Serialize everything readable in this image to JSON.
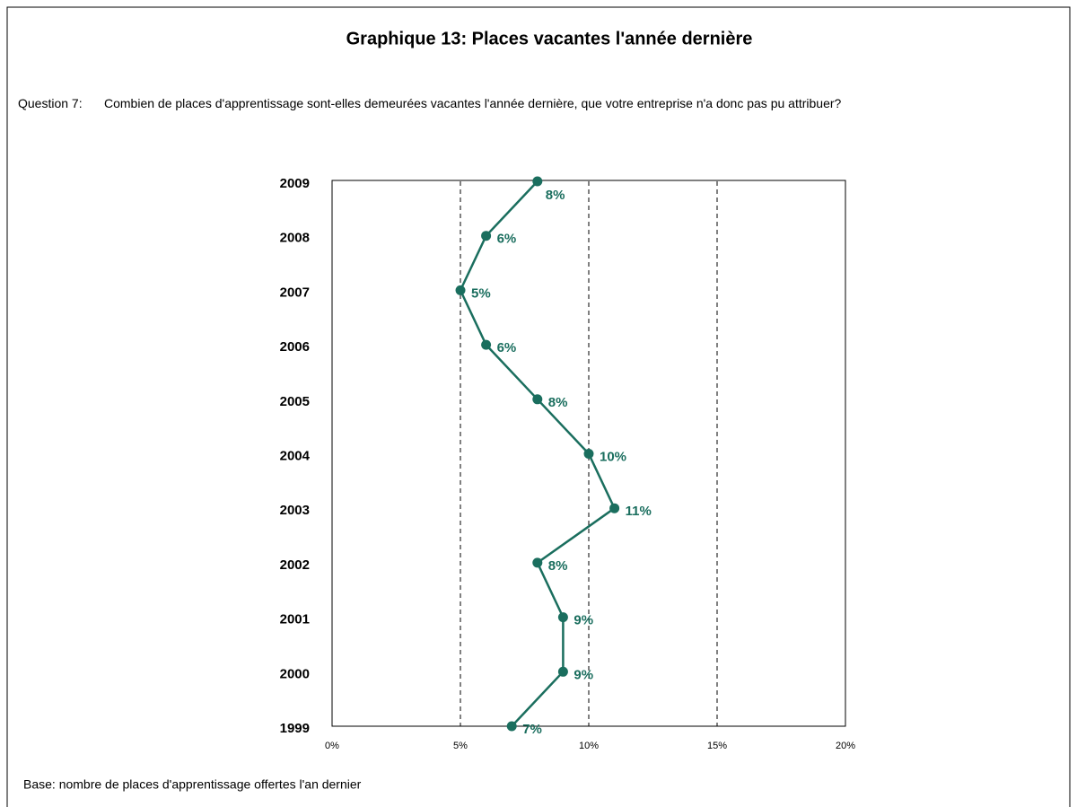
{
  "chart_data": {
    "type": "line",
    "orientation": "horizontal",
    "title": "Graphique 13: Places vacantes l'année dernière",
    "question_label": "Question 7:",
    "question": "Combien de places d'apprentissage sont-elles demeurées vacantes l'année dernière, que votre entreprise n'a donc pas pu attribuer?",
    "footnote": "Base: nombre de places d'apprentissage offertes l'an dernier",
    "categories": [
      "2009",
      "2008",
      "2007",
      "2006",
      "2005",
      "2004",
      "2003",
      "2002",
      "2001",
      "2000",
      "1999"
    ],
    "values": [
      8,
      6,
      5,
      6,
      8,
      10,
      11,
      8,
      9,
      9,
      7
    ],
    "value_labels": [
      "8%",
      "6%",
      "5%",
      "6%",
      "8%",
      "10%",
      "11%",
      "8%",
      "9%",
      "9%",
      "7%"
    ],
    "color": "#1a6e5e",
    "xlim": [
      0,
      20
    ],
    "xticks": [
      {
        "value": 0,
        "label": "0%"
      },
      {
        "value": 5,
        "label": "5%"
      },
      {
        "value": 10,
        "label": "10%"
      },
      {
        "value": 15,
        "label": "15%"
      },
      {
        "value": 20,
        "label": "20%"
      }
    ],
    "grid": true
  }
}
